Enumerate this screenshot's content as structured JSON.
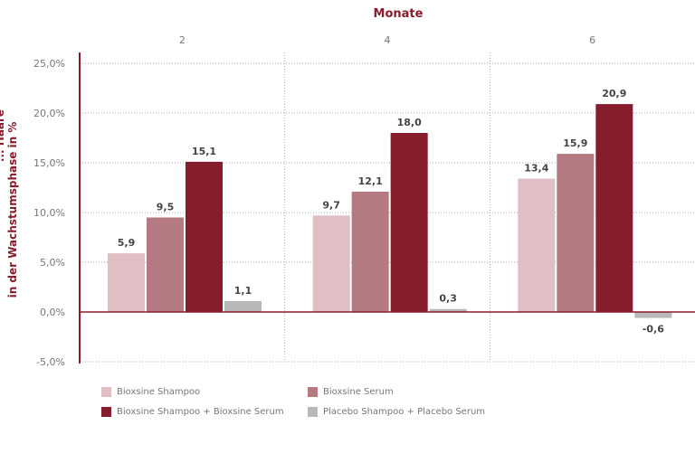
{
  "chart_data": {
    "type": "bar",
    "title": "Monate",
    "ylabel": "in der Wachstumsphase in %",
    "ylabel_partial": "... Haare",
    "categories": [
      "2",
      "4",
      "6"
    ],
    "ylim": [
      -5,
      25
    ],
    "yticks": [
      "-5,0%",
      "0,0%",
      "5,0%",
      "10,0%",
      "15,0%",
      "20,0%",
      "25,0%"
    ],
    "ytick_values": [
      -5,
      0,
      5,
      10,
      15,
      20,
      25
    ],
    "grid": true,
    "legend_position": "bottom",
    "series": [
      {
        "name": "Bioxsine Shampoo",
        "color": "#dfbfc4",
        "values": [
          5.9,
          9.7,
          13.4
        ],
        "labels": [
          "5,9",
          "9,7",
          "13,4"
        ]
      },
      {
        "name": "Bioxsine Serum",
        "color": "#b47a82",
        "values": [
          9.5,
          12.1,
          15.9
        ],
        "labels": [
          "9,5",
          "12,1",
          "15,9"
        ]
      },
      {
        "name": "Bioxsine Shampoo + Bioxsine Serum",
        "color": "#861d2c",
        "values": [
          15.1,
          18.0,
          20.9
        ],
        "labels": [
          "15,1",
          "18,0",
          "20,9"
        ]
      },
      {
        "name": "Placebo Shampoo + Placebo Serum",
        "color": "#b8b8b8",
        "values": [
          1.1,
          0.3,
          -0.6
        ],
        "labels": [
          "1,1",
          "0,3",
          "-0,6"
        ]
      }
    ]
  },
  "colors": {
    "title": "#8a1c2c",
    "axis": "#8a1c2c",
    "tick_text": "#777777",
    "grid": "#aaaaaa",
    "label_text": "#444444"
  }
}
